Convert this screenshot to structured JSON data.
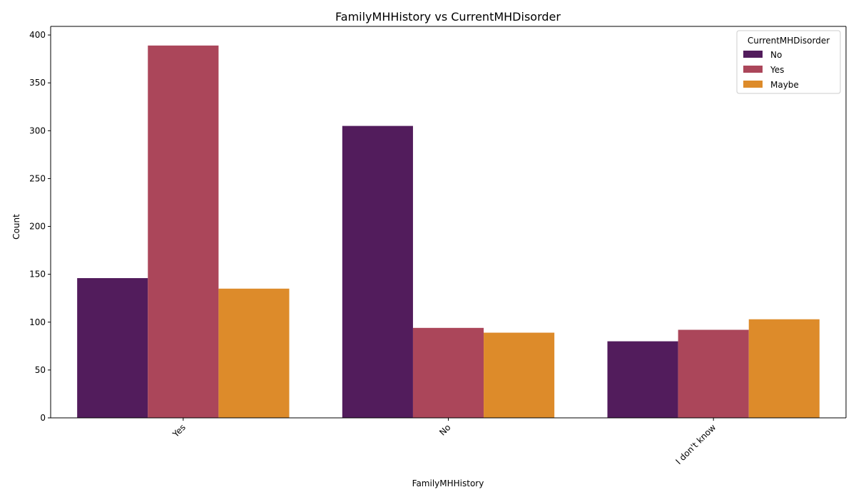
{
  "chart_data": {
    "type": "bar",
    "title": "FamilyMHHistory vs CurrentMHDisorder",
    "xlabel": "FamilyMHHistory",
    "ylabel": "Count",
    "categories": [
      "Yes",
      "No",
      "I don't know"
    ],
    "series": [
      {
        "name": "No",
        "values": [
          146,
          305,
          80
        ],
        "color": "#521c5c"
      },
      {
        "name": "Yes",
        "values": [
          389,
          94,
          92
        ],
        "color": "#ab465a"
      },
      {
        "name": "Maybe",
        "values": [
          135,
          89,
          103
        ],
        "color": "#dd8b2a"
      }
    ],
    "ylim": [
      0,
      409
    ],
    "yticks": [
      0,
      50,
      100,
      150,
      200,
      250,
      300,
      350,
      400
    ],
    "legend": {
      "title": "CurrentMHDisorder",
      "position": "top-right"
    },
    "grid": false
  }
}
